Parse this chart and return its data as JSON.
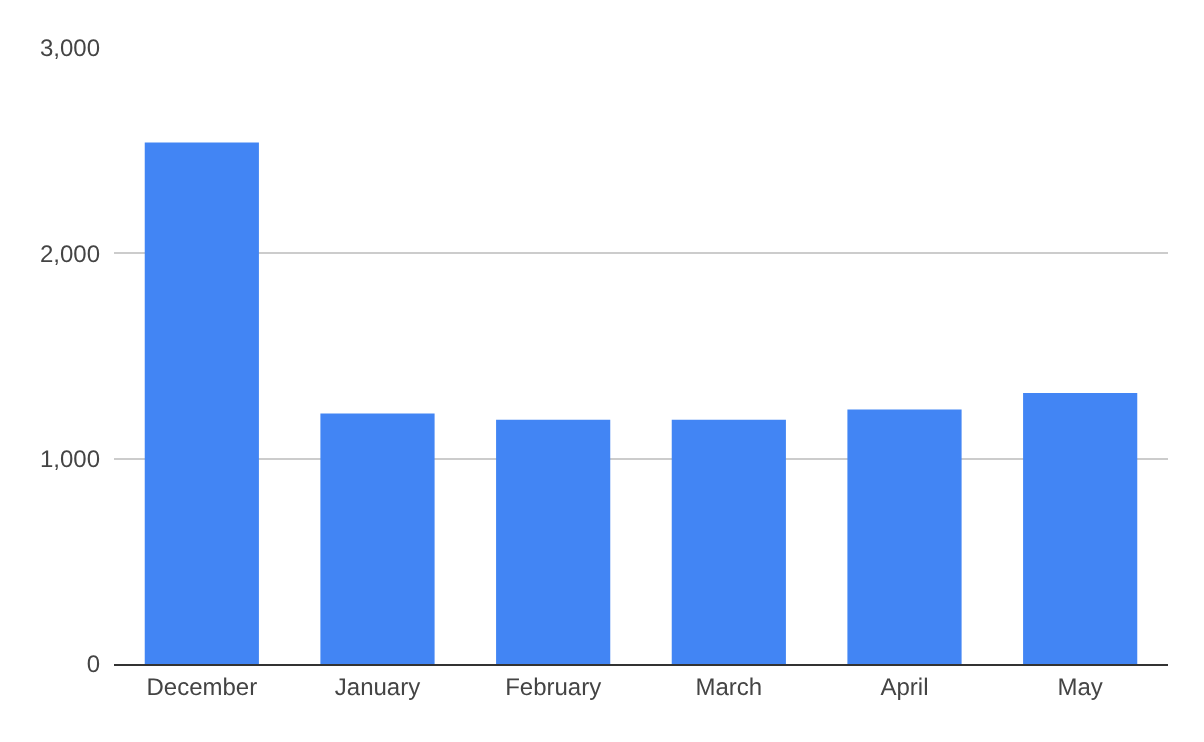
{
  "chart_data": {
    "type": "bar",
    "categories": [
      "December",
      "January",
      "February",
      "March",
      "April",
      "May"
    ],
    "values": [
      2540,
      1220,
      1190,
      1190,
      1240,
      1320
    ],
    "color": "#4285f4",
    "ylim": [
      0,
      3000
    ],
    "yticks": [
      {
        "value": 0,
        "label": "0"
      },
      {
        "value": 1000,
        "label": "1,000"
      },
      {
        "value": 2000,
        "label": "2,000"
      },
      {
        "value": 3000,
        "label": "3,000"
      }
    ],
    "grid": "y",
    "legend": false
  }
}
